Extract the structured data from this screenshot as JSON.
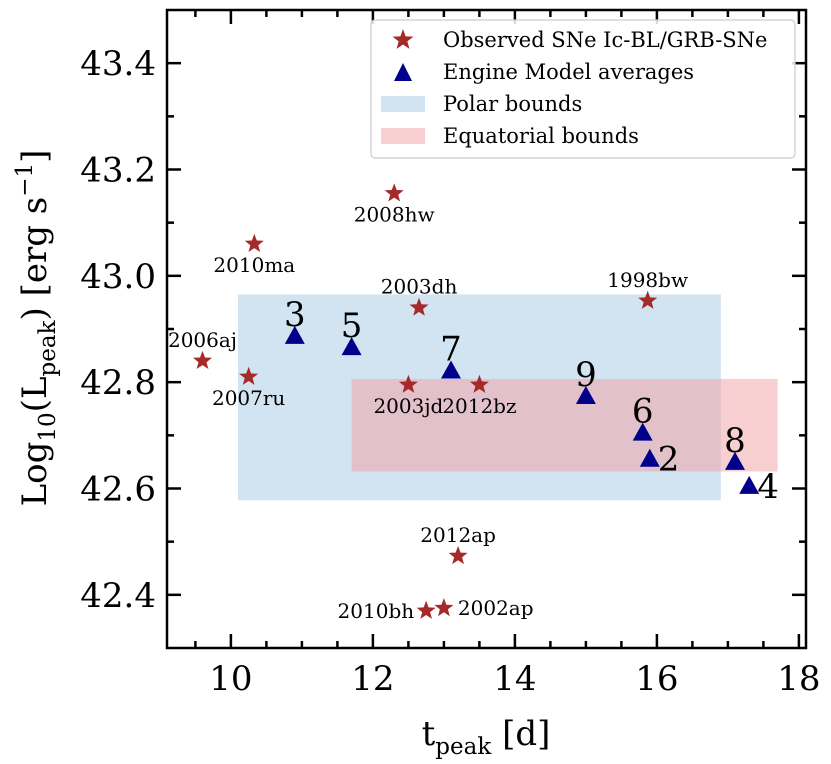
{
  "chart_data": {
    "type": "scatter",
    "xlabel_main": "t",
    "xlabel_sub": "peak",
    "xlabel_unit": " [d]",
    "ylabel_prefix": "Log",
    "ylabel_sub1": "10",
    "ylabel_mid": "(L",
    "ylabel_sub2": "peak",
    "ylabel_unit": ") [erg s",
    "ylabel_sup": "−1",
    "ylabel_close": "]",
    "xlim": [
      9.1,
      18.1
    ],
    "ylim": [
      42.3,
      43.5
    ],
    "xticks": [
      10,
      12,
      14,
      16,
      18
    ],
    "xtick_labels": [
      "10",
      "12",
      "14",
      "16",
      "18"
    ],
    "yticks": [
      42.4,
      42.6,
      42.8,
      43.0,
      43.2,
      43.4
    ],
    "ytick_labels": [
      "42.4",
      "42.6",
      "42.8",
      "43.0",
      "43.2",
      "43.4"
    ],
    "xminor": [
      9.5,
      10.5,
      11,
      11.5,
      12.5,
      13,
      13.5,
      14.5,
      15,
      15.5,
      16.5,
      17,
      17.5
    ],
    "yminor": [
      42.5,
      42.7,
      42.9,
      43.1,
      43.3
    ],
    "regions": [
      {
        "name": "Polar bounds",
        "x": [
          10.1,
          16.9
        ],
        "y": [
          42.578,
          42.965
        ],
        "color": "#a6c8e3",
        "opacity": 0.5
      },
      {
        "name": "Equatorial bounds",
        "x": [
          11.7,
          17.7
        ],
        "y": [
          42.632,
          42.806
        ],
        "color": "#f2a0a4",
        "opacity": 0.5
      }
    ],
    "observed": {
      "name": "Observed SNe Ic-BL/GRB-SNe",
      "color": "#a52a2a",
      "points": [
        {
          "label": "1998bw",
          "x": 15.87,
          "y": 42.953,
          "pos": "above"
        },
        {
          "label": "2002ap",
          "x": 13.0,
          "y": 42.375,
          "pos": "right"
        },
        {
          "label": "2003dh",
          "x": 12.65,
          "y": 42.94,
          "pos": "above"
        },
        {
          "label": "2003jd",
          "x": 12.5,
          "y": 42.795,
          "pos": "below"
        },
        {
          "label": "2006aj",
          "x": 9.6,
          "y": 42.84,
          "pos": "above"
        },
        {
          "label": "2007ru",
          "x": 10.25,
          "y": 42.81,
          "pos": "below"
        },
        {
          "label": "2008hw",
          "x": 12.3,
          "y": 43.155,
          "pos": "below"
        },
        {
          "label": "2010bh",
          "x": 12.75,
          "y": 42.37,
          "pos": "left"
        },
        {
          "label": "2010ma",
          "x": 10.33,
          "y": 43.06,
          "pos": "below"
        },
        {
          "label": "2012ap",
          "x": 13.2,
          "y": 42.473,
          "pos": "above"
        },
        {
          "label": "2012bz",
          "x": 13.5,
          "y": 42.795,
          "pos": "below"
        }
      ]
    },
    "models": {
      "name": "Engine Model averages",
      "color": "#00008b",
      "points": [
        {
          "label": "3",
          "x": 10.9,
          "y": 42.887
        },
        {
          "label": "5",
          "x": 11.7,
          "y": 42.866
        },
        {
          "label": "7",
          "x": 13.1,
          "y": 42.822
        },
        {
          "label": "9",
          "x": 15.0,
          "y": 42.774
        },
        {
          "label": "6",
          "x": 15.8,
          "y": 42.705
        },
        {
          "label": "2",
          "x": 15.9,
          "y": 42.656
        },
        {
          "label": "8",
          "x": 17.1,
          "y": 42.65
        },
        {
          "label": "4",
          "x": 17.3,
          "y": 42.605
        }
      ]
    },
    "legend": {
      "position": "top-right",
      "entries": [
        {
          "label": "Observed SNe Ic-BL/GRB-SNe",
          "kind": "star"
        },
        {
          "label": "Engine Model averages",
          "kind": "triangle"
        },
        {
          "label": "Polar bounds",
          "kind": "patch-polar"
        },
        {
          "label": "Equatorial bounds",
          "kind": "patch-equatorial"
        }
      ]
    }
  }
}
